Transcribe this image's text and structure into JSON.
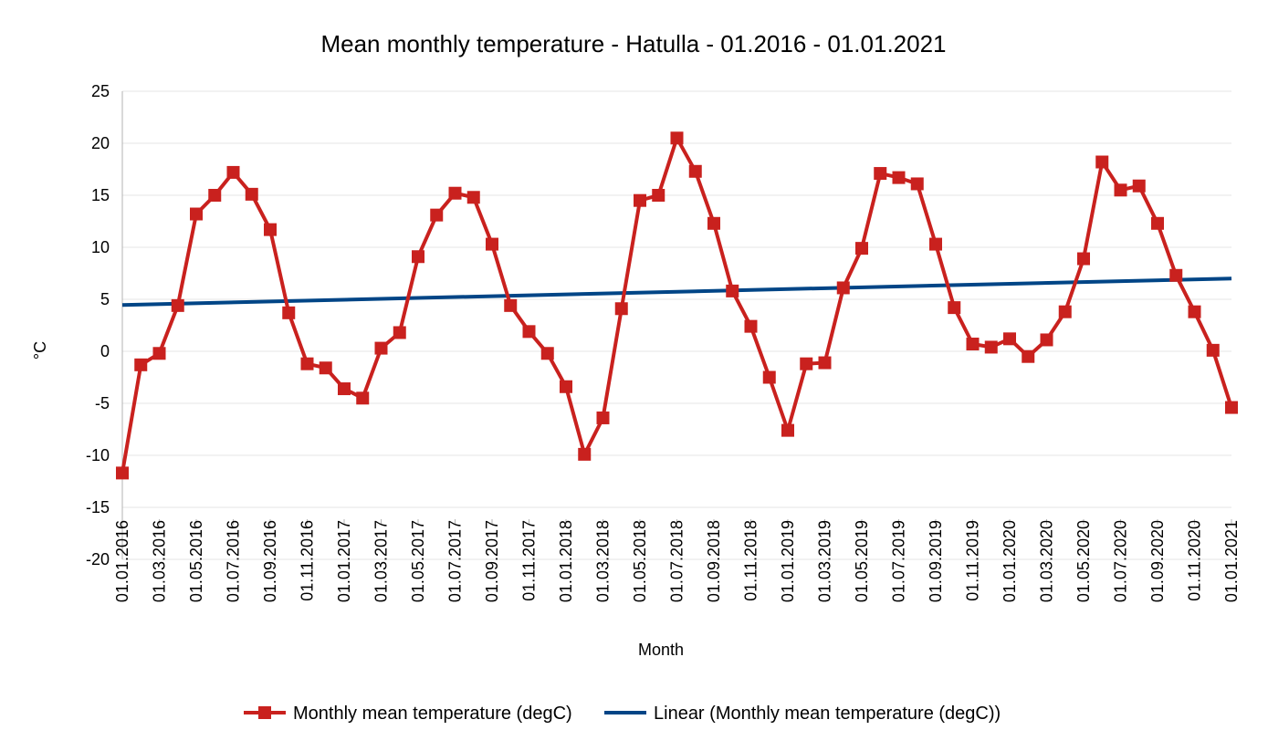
{
  "chart_data": {
    "type": "line",
    "title": "Mean monthly temperature - Hatulla - 01.2016 - 01.01.2021",
    "xlabel": "Month",
    "ylabel": "°C",
    "ylim": [
      -20,
      25
    ],
    "ytick_step": 5,
    "x_labels": [
      "01.01.2016",
      "01.03.2016",
      "01.05.2016",
      "01.07.2016",
      "01.09.2016",
      "01.11.2016",
      "01.01.2017",
      "01.03.2017",
      "01.05.2017",
      "01.07.2017",
      "01.09.2017",
      "01.11.2017",
      "01.01.2018",
      "01.03.2018",
      "01.05.2018",
      "01.07.2018",
      "01.09.2018",
      "01.11.2018",
      "01.01.2019",
      "01.03.2019",
      "01.05.2019",
      "01.07.2019",
      "01.09.2019",
      "01.11.2019",
      "01.01.2020",
      "01.03.2020",
      "01.05.2020",
      "01.07.2020",
      "01.09.2020",
      "01.11.2020",
      "01.01.2021"
    ],
    "grid": true,
    "legend_position": "bottom",
    "series": [
      {
        "name": "Monthly mean temperature (degC)",
        "color": "#c9211e",
        "marker": "square",
        "values": [
          -11.7,
          -1.3,
          -0.2,
          4.4,
          13.2,
          15.0,
          17.2,
          15.1,
          11.7,
          3.7,
          -1.2,
          -1.6,
          -3.6,
          -4.5,
          0.3,
          1.8,
          9.1,
          13.1,
          15.2,
          14.8,
          10.3,
          4.4,
          1.9,
          -0.2,
          -3.4,
          -9.9,
          -6.4,
          4.1,
          14.5,
          15.0,
          20.5,
          17.3,
          12.3,
          5.8,
          2.4,
          -2.5,
          -7.6,
          -1.2,
          -1.1,
          6.1,
          9.9,
          17.1,
          16.7,
          16.1,
          10.3,
          4.2,
          0.7,
          0.4,
          1.2,
          -0.5,
          1.1,
          3.8,
          8.9,
          18.2,
          15.5,
          15.9,
          12.3,
          7.3,
          3.8,
          0.1,
          -5.4
        ]
      },
      {
        "name": "Linear (Monthly mean temperature (degC))",
        "color": "#004586",
        "trendline": true,
        "values": [
          4.45,
          7.0
        ]
      }
    ]
  }
}
